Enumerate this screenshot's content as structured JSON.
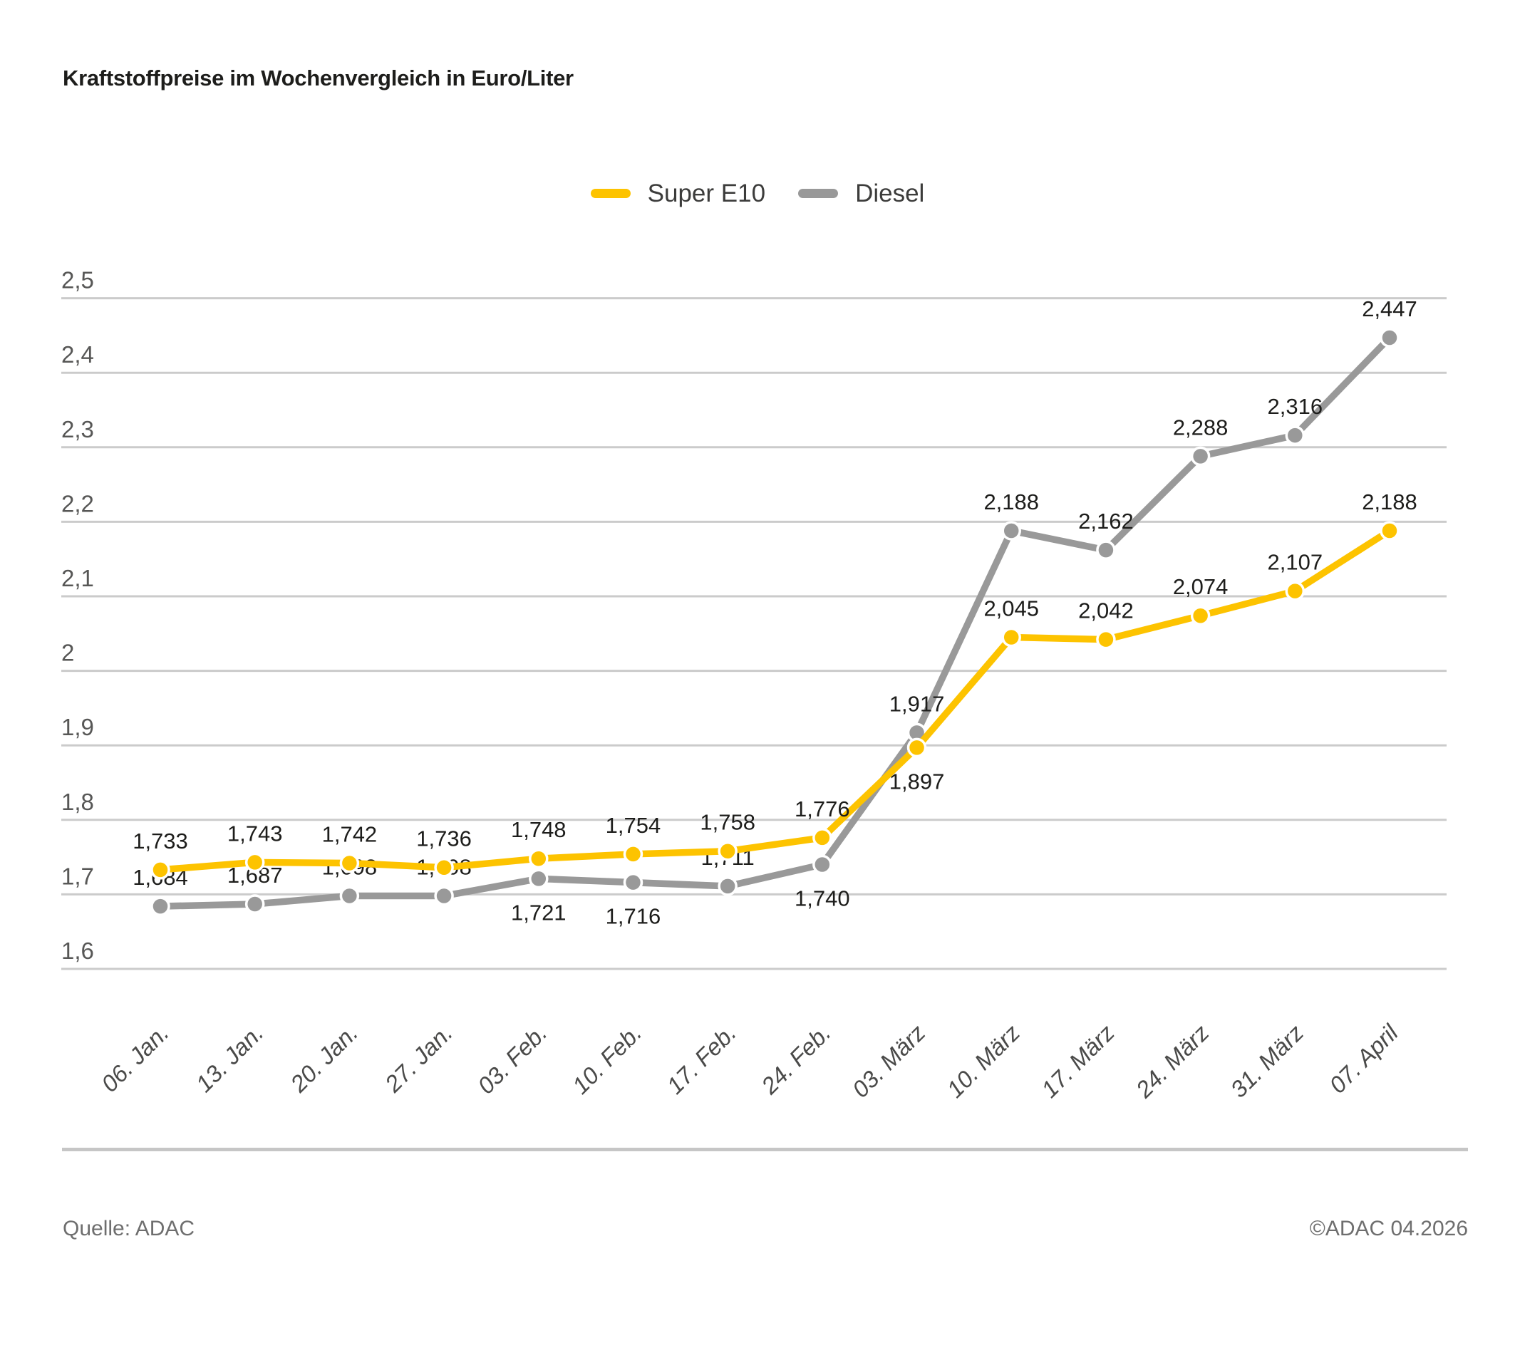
{
  "title": "Kraftstoffpreise im Wochenvergleich in Euro/Liter",
  "legend": [
    {
      "label": "Super E10",
      "color": "#fdc300"
    },
    {
      "label": "Diesel",
      "color": "#999999"
    }
  ],
  "footer": {
    "source": "Quelle: ADAC",
    "copyright": "©ADAC 04.2026"
  },
  "chart_data": {
    "type": "line",
    "title": "Kraftstoffpreise im Wochenvergleich in Euro/Liter",
    "xlabel": "",
    "ylabel": "Euro/Liter",
    "ylim": [
      1.6,
      2.5
    ],
    "grid": true,
    "legend_position": "top",
    "categories": [
      "06. Jan.",
      "13. Jan.",
      "20. Jan.",
      "27. Jan.",
      "03. Feb.",
      "10. Feb.",
      "17. Feb.",
      "24. Feb.",
      "03. März",
      "10. März",
      "17. März",
      "24. März",
      "31. März",
      "07. April"
    ],
    "yticks": [
      {
        "value": 2.5,
        "label": "2,5"
      },
      {
        "value": 2.4,
        "label": "2,4"
      },
      {
        "value": 2.3,
        "label": "2,3"
      },
      {
        "value": 2.2,
        "label": "2,2"
      },
      {
        "value": 2.1,
        "label": "2,1"
      },
      {
        "value": 2.0,
        "label": "2"
      },
      {
        "value": 1.9,
        "label": "1,9"
      },
      {
        "value": 1.8,
        "label": "1,8"
      },
      {
        "value": 1.7,
        "label": "1,7"
      },
      {
        "value": 1.6,
        "label": "1,6"
      }
    ],
    "series": [
      {
        "name": "Diesel",
        "color": "#999999",
        "values": [
          1.684,
          1.687,
          1.698,
          1.698,
          1.721,
          1.716,
          1.711,
          1.74,
          1.917,
          2.188,
          2.162,
          2.288,
          2.316,
          2.447
        ],
        "labels": [
          "1,684",
          "1,687",
          "1,698",
          "1,698",
          "1,721",
          "1,716",
          "1,711",
          "1,740",
          "1,917",
          "2,188",
          "2,162",
          "2,288",
          "2,316",
          "2,447"
        ],
        "label_positions": [
          "above",
          "above",
          "above",
          "above",
          "below",
          "below",
          "above",
          "below",
          "above",
          "above",
          "above",
          "above",
          "above",
          "above"
        ]
      },
      {
        "name": "Super E10",
        "color": "#fdc300",
        "values": [
          1.733,
          1.743,
          1.742,
          1.736,
          1.748,
          1.754,
          1.758,
          1.776,
          1.897,
          2.045,
          2.042,
          2.074,
          2.107,
          2.188
        ],
        "labels": [
          "1,733",
          "1,743",
          "1,742",
          "1,736",
          "1,748",
          "1,754",
          "1,758",
          "1,776",
          "1,897",
          "2,045",
          "2,042",
          "2,074",
          "2,107",
          "2,188"
        ],
        "label_positions": [
          "above",
          "above",
          "above",
          "above",
          "above",
          "above",
          "above",
          "above",
          "below",
          "above",
          "above",
          "above",
          "above",
          "above"
        ]
      }
    ],
    "style": {
      "gridline_color": "#cbcbcb",
      "ytick_color": "#575756",
      "xtick_color": "#4a4a49",
      "datalabel_color": "#1d1d1b",
      "point_outline_color": "#ffffff"
    }
  }
}
